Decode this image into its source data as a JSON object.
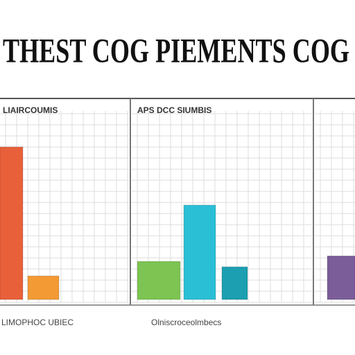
{
  "title": "THEST COG PIEMENTS COG",
  "chart_data": [
    {
      "type": "bar",
      "title": "LIAIRCOUMIS",
      "x_label": "LIMOPHOC UBIEC",
      "categories": [
        null,
        null
      ],
      "series": [
        {
          "values": [
            84,
            13
          ],
          "colors": [
            "#e8603a",
            "#f39a35"
          ]
        }
      ],
      "ylim": [
        0,
        100
      ],
      "grid": true
    },
    {
      "type": "bar",
      "title": "APS DCC SIUMBIS",
      "x_label": "Olniscroceolmbecs",
      "categories": [
        null,
        null,
        null
      ],
      "series": [
        {
          "values": [
            21,
            52,
            18
          ],
          "colors": [
            "#7dc452",
            "#2bbfd6",
            "#1c9fb0"
          ]
        }
      ],
      "ylim": [
        0,
        100
      ],
      "grid": true
    },
    {
      "type": "bar",
      "categories": [
        null
      ],
      "series": [
        {
          "values": [
            24
          ],
          "colors": [
            "#7b5d9a"
          ]
        }
      ],
      "ylim": [
        0,
        100
      ],
      "grid": true
    }
  ]
}
